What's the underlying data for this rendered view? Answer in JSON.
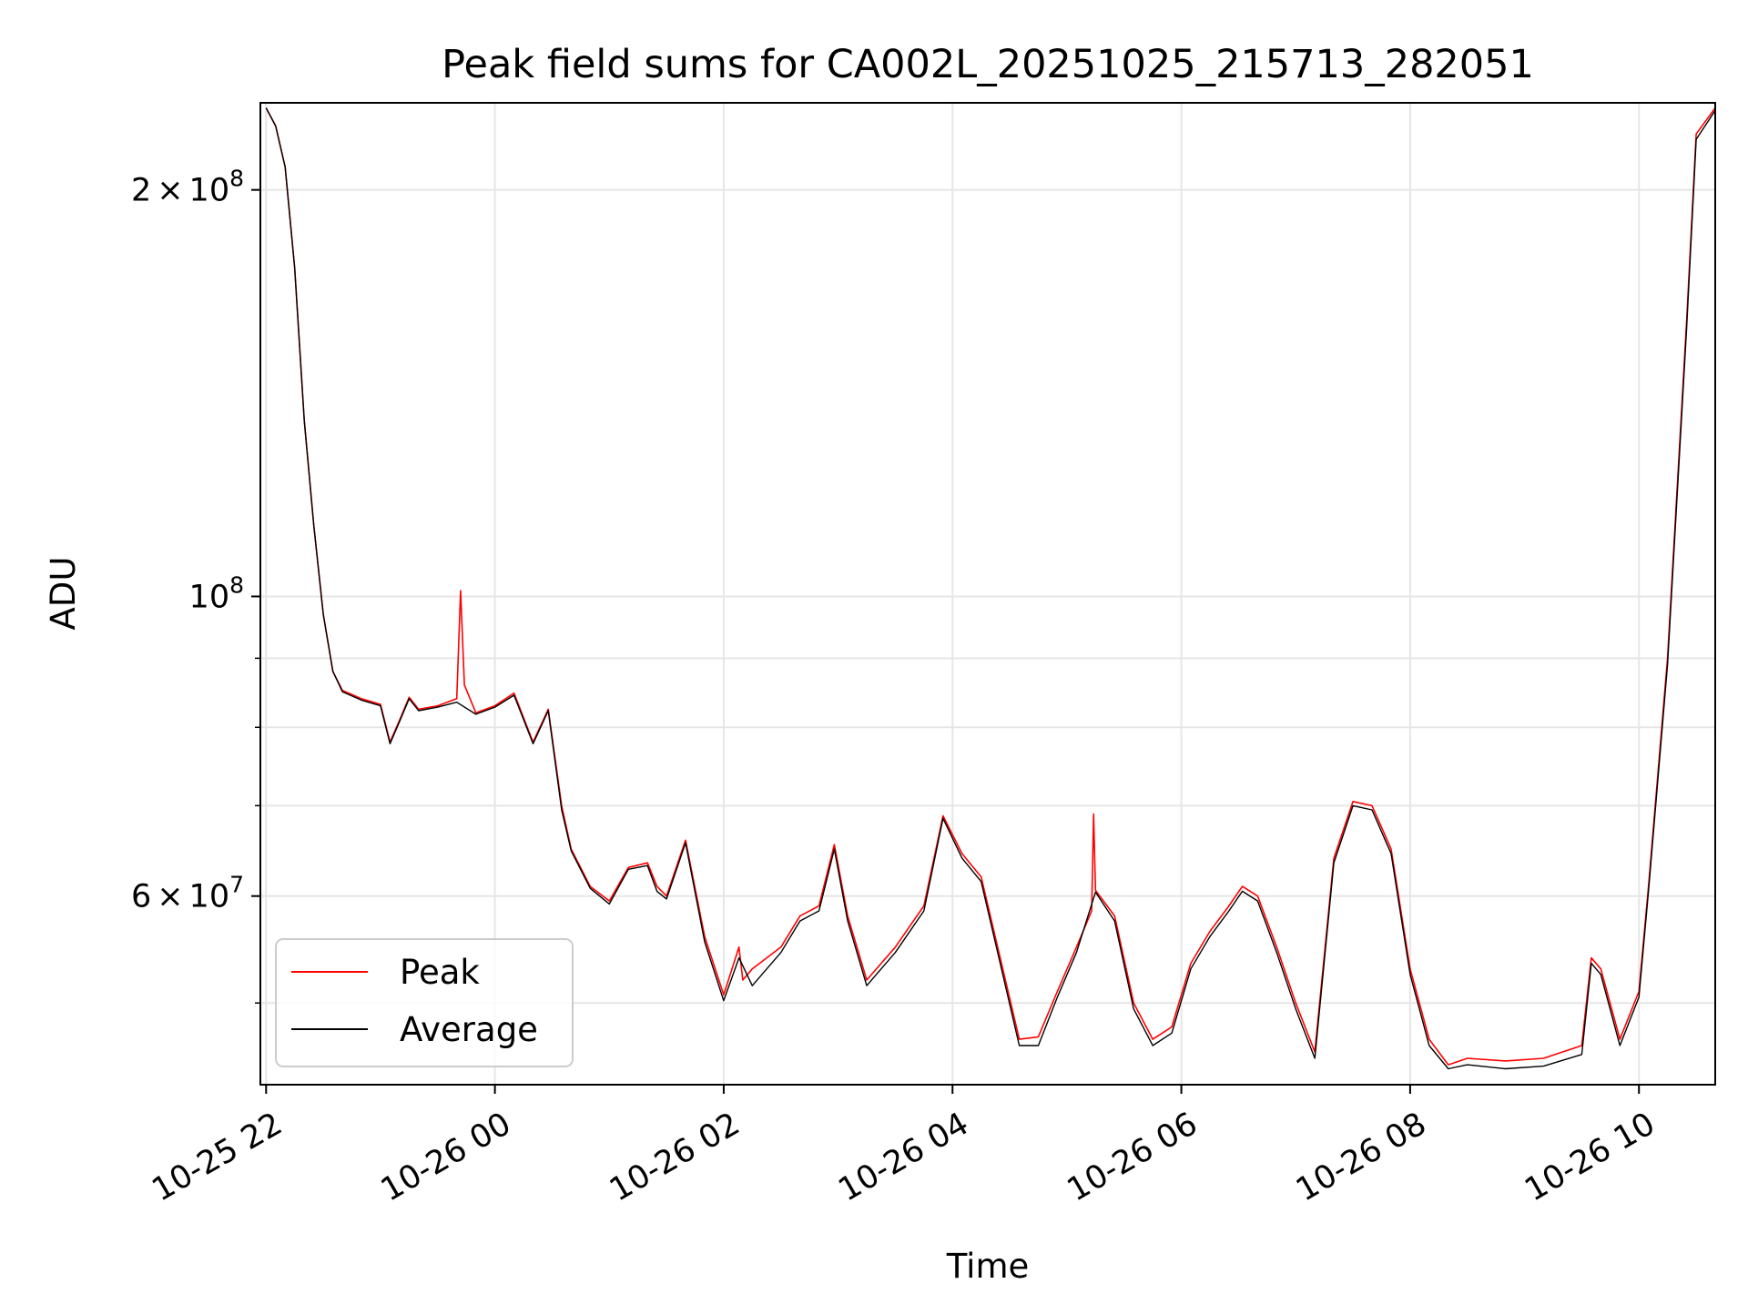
{
  "chart_data": {
    "type": "line",
    "title": "Peak field sums for CA002L_20251025_215713_282051",
    "xlabel": "Time",
    "ylabel": "ADU",
    "xlim": [
      "2025-10-25 21:57",
      "2025-10-26 10:40"
    ],
    "ylim": [
      43500000,
      232000000
    ],
    "yscale": "log",
    "grid": true,
    "legend_position": "lower-left",
    "x_ticks": [
      {
        "value": "2025-10-25 22:00",
        "label": "10-25 22"
      },
      {
        "value": "2025-10-26 00:00",
        "label": "10-26 00"
      },
      {
        "value": "2025-10-26 02:00",
        "label": "10-26 02"
      },
      {
        "value": "2025-10-26 04:00",
        "label": "10-26 04"
      },
      {
        "value": "2025-10-26 06:00",
        "label": "10-26 06"
      },
      {
        "value": "2025-10-26 08:00",
        "label": "10-26 08"
      },
      {
        "value": "2025-10-26 10:00",
        "label": "10-26 10"
      }
    ],
    "y_major_ticks": [
      {
        "value": 60000000,
        "mant": "6",
        "exp": "7"
      },
      {
        "value": 100000000,
        "mant": "",
        "exp": "8"
      },
      {
        "value": 200000000,
        "mant": "2",
        "exp": "8"
      }
    ],
    "y_minor_ticks": [
      50000000,
      70000000,
      80000000,
      90000000
    ],
    "series": [
      {
        "name": "Peak",
        "color": "#ff0000",
        "x": [
          "2025-10-25 22:00",
          "2025-10-25 22:05",
          "2025-10-25 22:10",
          "2025-10-25 22:15",
          "2025-10-25 22:20",
          "2025-10-25 22:25",
          "2025-10-25 22:30",
          "2025-10-25 22:35",
          "2025-10-25 22:40",
          "2025-10-25 22:50",
          "2025-10-25 23:00",
          "2025-10-25 23:05",
          "2025-10-25 23:10",
          "2025-10-25 23:15",
          "2025-10-25 23:20",
          "2025-10-25 23:30",
          "2025-10-25 23:40",
          "2025-10-25 23:42",
          "2025-10-25 23:44",
          "2025-10-25 23:50",
          "2025-10-26 00:00",
          "2025-10-26 00:10",
          "2025-10-26 00:20",
          "2025-10-26 00:28",
          "2025-10-26 00:35",
          "2025-10-26 00:40",
          "2025-10-26 00:50",
          "2025-10-26 01:00",
          "2025-10-26 01:10",
          "2025-10-26 01:20",
          "2025-10-26 01:25",
          "2025-10-26 01:30",
          "2025-10-26 01:40",
          "2025-10-26 01:50",
          "2025-10-26 02:00",
          "2025-10-26 02:08",
          "2025-10-26 02:10",
          "2025-10-26 02:15",
          "2025-10-26 02:30",
          "2025-10-26 02:40",
          "2025-10-26 02:50",
          "2025-10-26 02:58",
          "2025-10-26 03:05",
          "2025-10-26 03:15",
          "2025-10-26 03:30",
          "2025-10-26 03:45",
          "2025-10-26 03:55",
          "2025-10-26 04:05",
          "2025-10-26 04:15",
          "2025-10-26 04:25",
          "2025-10-26 04:35",
          "2025-10-26 04:45",
          "2025-10-26 04:55",
          "2025-10-26 05:05",
          "2025-10-26 05:13",
          "2025-10-26 05:14",
          "2025-10-26 05:15",
          "2025-10-26 05:25",
          "2025-10-26 05:35",
          "2025-10-26 05:45",
          "2025-10-26 05:55",
          "2025-10-26 06:05",
          "2025-10-26 06:15",
          "2025-10-26 06:25",
          "2025-10-26 06:32",
          "2025-10-26 06:40",
          "2025-10-26 06:50",
          "2025-10-26 07:00",
          "2025-10-26 07:10",
          "2025-10-26 07:20",
          "2025-10-26 07:30",
          "2025-10-26 07:40",
          "2025-10-26 07:50",
          "2025-10-26 08:00",
          "2025-10-26 08:10",
          "2025-10-26 08:20",
          "2025-10-26 08:30",
          "2025-10-26 08:50",
          "2025-10-26 09:10",
          "2025-10-26 09:30",
          "2025-10-26 09:35",
          "2025-10-26 09:40",
          "2025-10-26 09:50",
          "2025-10-26 10:00",
          "2025-10-26 10:05",
          "2025-10-26 10:15",
          "2025-10-26 10:25",
          "2025-10-26 10:30",
          "2025-10-26 10:40"
        ],
        "y": [
          230000000,
          223000000,
          208000000,
          175000000,
          135000000,
          113000000,
          97000000,
          88000000,
          85200000,
          84000000,
          83200000,
          78000000,
          81000000,
          84200000,
          82500000,
          83000000,
          84000000,
          101000000,
          86000000,
          82000000,
          83000000,
          84800000,
          78000000,
          82500000,
          70000000,
          65000000,
          61000000,
          59500000,
          63000000,
          63500000,
          61000000,
          60000000,
          66000000,
          56000000,
          50700000,
          55000000,
          52000000,
          53000000,
          55000000,
          58000000,
          59000000,
          65500000,
          58000000,
          52000000,
          55000000,
          59000000,
          68800000,
          64500000,
          62000000,
          54000000,
          47000000,
          47200000,
          51000000,
          55000000,
          58500000,
          69000000,
          60600000,
          58000000,
          50000000,
          47000000,
          48000000,
          53500000,
          56500000,
          59000000,
          61000000,
          60000000,
          55000000,
          50000000,
          46000000,
          64000000,
          70500000,
          70000000,
          65000000,
          53000000,
          47000000,
          45000000,
          45500000,
          45300000,
          45500000,
          46500000,
          54000000,
          53000000,
          47000000,
          51000000,
          61000000,
          90000000,
          160000000,
          220000000,
          230000000
        ]
      },
      {
        "name": "Average",
        "color": "#000000",
        "x": [
          "2025-10-25 22:00",
          "2025-10-25 22:05",
          "2025-10-25 22:10",
          "2025-10-25 22:15",
          "2025-10-25 22:20",
          "2025-10-25 22:25",
          "2025-10-25 22:30",
          "2025-10-25 22:35",
          "2025-10-25 22:40",
          "2025-10-25 22:50",
          "2025-10-25 23:00",
          "2025-10-25 23:05",
          "2025-10-25 23:10",
          "2025-10-25 23:15",
          "2025-10-25 23:20",
          "2025-10-25 23:30",
          "2025-10-25 23:40",
          "2025-10-25 23:50",
          "2025-10-26 00:00",
          "2025-10-26 00:10",
          "2025-10-26 00:20",
          "2025-10-26 00:28",
          "2025-10-26 00:35",
          "2025-10-26 00:40",
          "2025-10-26 00:50",
          "2025-10-26 01:00",
          "2025-10-26 01:10",
          "2025-10-26 01:20",
          "2025-10-26 01:25",
          "2025-10-26 01:30",
          "2025-10-26 01:40",
          "2025-10-26 01:50",
          "2025-10-26 02:00",
          "2025-10-26 02:08",
          "2025-10-26 02:15",
          "2025-10-26 02:30",
          "2025-10-26 02:40",
          "2025-10-26 02:50",
          "2025-10-26 02:58",
          "2025-10-26 03:05",
          "2025-10-26 03:15",
          "2025-10-26 03:30",
          "2025-10-26 03:45",
          "2025-10-26 03:55",
          "2025-10-26 04:05",
          "2025-10-26 04:15",
          "2025-10-26 04:25",
          "2025-10-26 04:35",
          "2025-10-26 04:45",
          "2025-10-26 04:55",
          "2025-10-26 05:05",
          "2025-10-26 05:15",
          "2025-10-26 05:25",
          "2025-10-26 05:35",
          "2025-10-26 05:45",
          "2025-10-26 05:55",
          "2025-10-26 06:05",
          "2025-10-26 06:15",
          "2025-10-26 06:25",
          "2025-10-26 06:32",
          "2025-10-26 06:40",
          "2025-10-26 06:50",
          "2025-10-26 07:00",
          "2025-10-26 07:10",
          "2025-10-26 07:20",
          "2025-10-26 07:30",
          "2025-10-26 07:40",
          "2025-10-26 07:50",
          "2025-10-26 08:00",
          "2025-10-26 08:10",
          "2025-10-26 08:20",
          "2025-10-26 08:30",
          "2025-10-26 08:50",
          "2025-10-26 09:10",
          "2025-10-26 09:30",
          "2025-10-26 09:35",
          "2025-10-26 09:40",
          "2025-10-26 09:50",
          "2025-10-26 10:00",
          "2025-10-26 10:05",
          "2025-10-26 10:15",
          "2025-10-26 10:25",
          "2025-10-26 10:30",
          "2025-10-26 10:40"
        ],
        "y": [
          230000000,
          223000000,
          208000000,
          175000000,
          135000000,
          113000000,
          97000000,
          88000000,
          85000000,
          83800000,
          83000000,
          77800000,
          80800000,
          84000000,
          82300000,
          82800000,
          83500000,
          81800000,
          82800000,
          84500000,
          77800000,
          82300000,
          69500000,
          64800000,
          60800000,
          59200000,
          62800000,
          63200000,
          60500000,
          59700000,
          65700000,
          55500000,
          50200000,
          54000000,
          51500000,
          54500000,
          57500000,
          58500000,
          65000000,
          57500000,
          51500000,
          54500000,
          58500000,
          68500000,
          64000000,
          61500000,
          53500000,
          46500000,
          46500000,
          50500000,
          54500000,
          60400000,
          57500000,
          49500000,
          46500000,
          47500000,
          53000000,
          56000000,
          58500000,
          60500000,
          59500000,
          54500000,
          49500000,
          45500000,
          63500000,
          70000000,
          69500000,
          64500000,
          52500000,
          46500000,
          44700000,
          45000000,
          44700000,
          44900000,
          45800000,
          53500000,
          52500000,
          46500000,
          50500000,
          60500000,
          89000000,
          158000000,
          218000000,
          229000000
        ]
      }
    ]
  }
}
